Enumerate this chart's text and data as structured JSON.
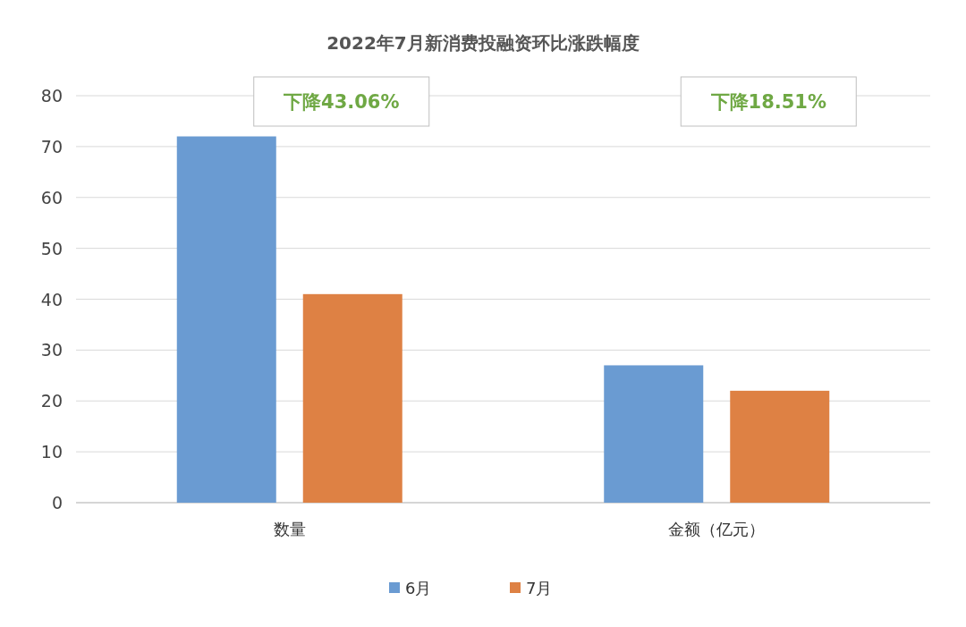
{
  "chart_data": {
    "type": "bar",
    "title": "2022年7月新消费投融资环比涨跌幅度",
    "categories": [
      "数量",
      "金额（亿元）"
    ],
    "series": [
      {
        "name": "6月",
        "color": "#6a9bd2",
        "values": [
          72,
          27
        ]
      },
      {
        "name": "7月",
        "color": "#de8144",
        "values": [
          41,
          22
        ]
      }
    ],
    "ylim": [
      0,
      80
    ],
    "yticks": [
      0,
      10,
      20,
      30,
      40,
      50,
      60,
      70,
      80
    ],
    "grid": "y",
    "legend": "bottom",
    "annotations": [
      "下降43.06%",
      "下降18.51%"
    ]
  }
}
